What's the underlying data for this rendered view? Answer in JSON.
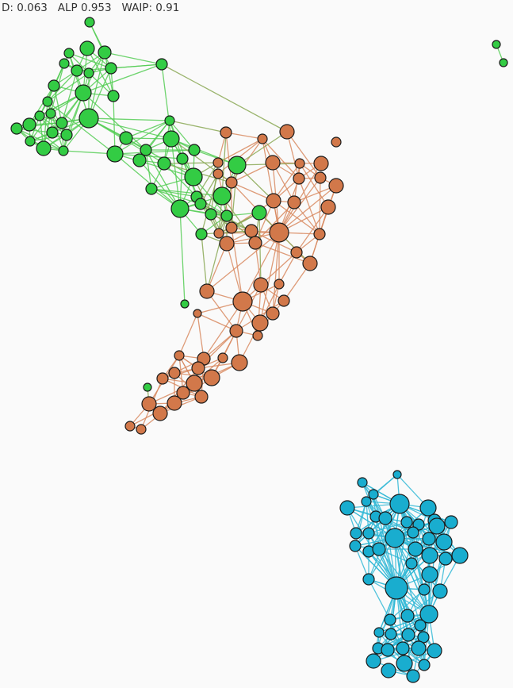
{
  "stats": {
    "d_label": "D: 0.063",
    "alp_label": "ALP 0.953",
    "waip_label": "WAIP: 0.91"
  },
  "colors": {
    "green": "#33cc44",
    "orange": "#d2784a",
    "blue": "#19adcf",
    "green_edge": "#55cc55",
    "orange_edge": "#d88a60",
    "blue_edge": "#33b8d6",
    "mixed_edge": "#8aa855",
    "node_stroke": "#1a1a1a",
    "background": "#fafafa"
  },
  "clusters": [
    "green",
    "orange",
    "blue"
  ]
}
